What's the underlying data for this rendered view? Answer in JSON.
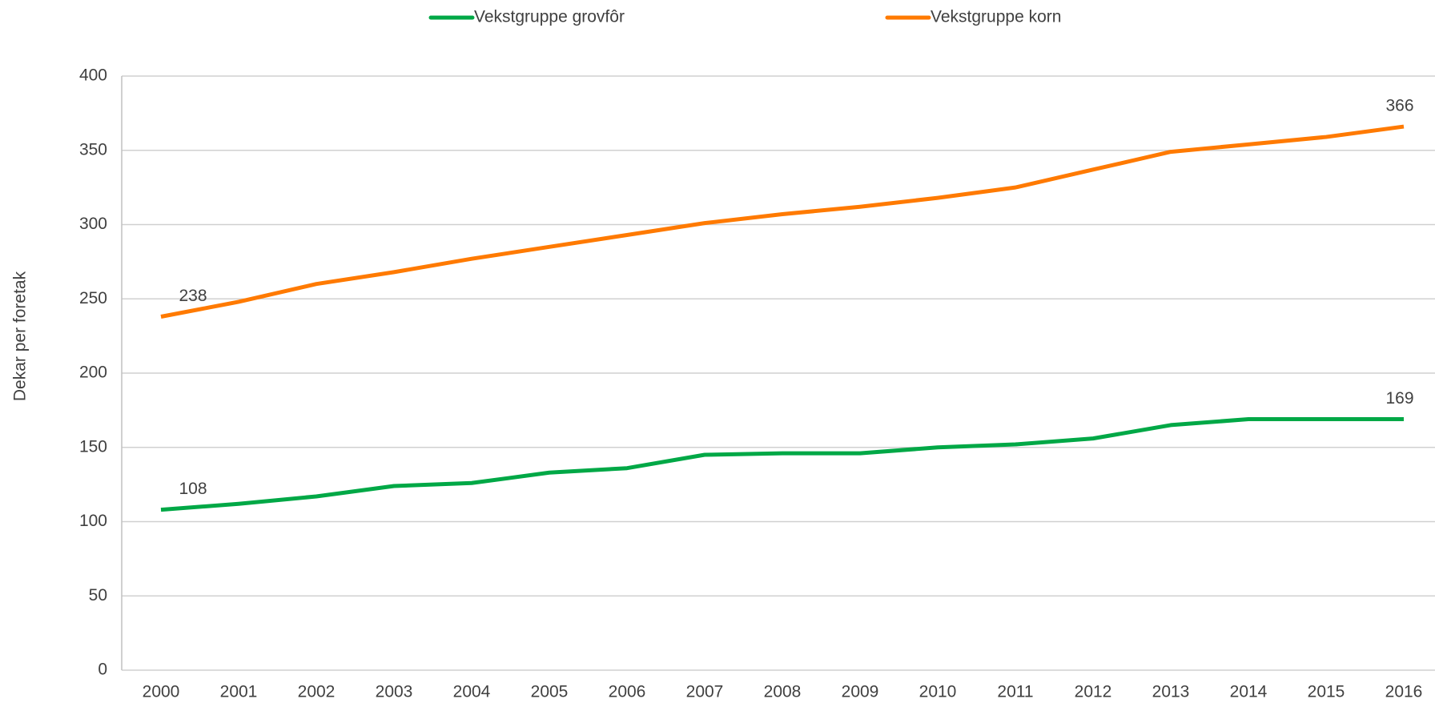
{
  "chart_data": {
    "type": "line",
    "y_label": "Dekar per foretak",
    "categories": [
      "2000",
      "2001",
      "2002",
      "2003",
      "2004",
      "2005",
      "2006",
      "2007",
      "2008",
      "2009",
      "2010",
      "2011",
      "2012",
      "2013",
      "2014",
      "2015",
      "2016"
    ],
    "series": [
      {
        "name": "Vekstgruppe grovfôr",
        "color": "#00a846",
        "values": [
          108,
          112,
          117,
          124,
          126,
          133,
          136,
          145,
          146,
          146,
          150,
          152,
          156,
          165,
          169,
          169,
          169
        ]
      },
      {
        "name": "Vekstgruppe korn",
        "color": "#ff7a00",
        "values": [
          238,
          248,
          260,
          268,
          277,
          285,
          293,
          301,
          307,
          312,
          318,
          325,
          337,
          349,
          354,
          359,
          366
        ]
      }
    ],
    "labeled_points": [
      0,
      16
    ],
    "ylim": [
      0,
      400
    ],
    "yticks": [
      0,
      50,
      100,
      150,
      200,
      250,
      300,
      350,
      400
    ],
    "grid": true,
    "legend": "top"
  }
}
